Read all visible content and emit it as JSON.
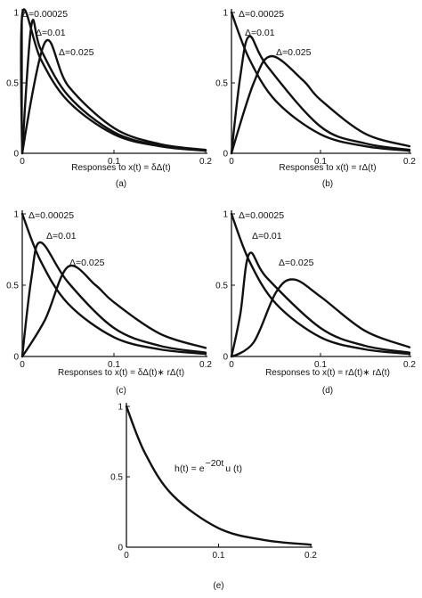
{
  "chart_data": [
    {
      "type": "line",
      "panel_label": "(a)",
      "xlabel": "Responses to x(t) = δΔ(t)",
      "x_ticks": [
        "0",
        "0.1",
        "0.2"
      ],
      "y_ticks": [
        "0",
        "0.5",
        "1"
      ],
      "xlim": [
        0,
        0.2
      ],
      "ylim": [
        0,
        1
      ],
      "series": [
        {
          "name": "Δ=0.00025",
          "x": [
            0,
            0.00025,
            0.02,
            0.05,
            0.1,
            0.15,
            0.2
          ],
          "y": [
            0,
            1.0,
            0.67,
            0.37,
            0.135,
            0.05,
            0.018
          ]
        },
        {
          "name": "Δ=0.01",
          "x": [
            0,
            0.01,
            0.02,
            0.05,
            0.1,
            0.15,
            0.2
          ],
          "y": [
            0,
            0.91,
            0.74,
            0.41,
            0.15,
            0.055,
            0.02
          ]
        },
        {
          "name": "Δ=0.025",
          "x": [
            0,
            0.025,
            0.05,
            0.1,
            0.15,
            0.2
          ],
          "y": [
            0,
            0.79,
            0.48,
            0.18,
            0.065,
            0.024
          ]
        }
      ]
    },
    {
      "type": "line",
      "panel_label": "(b)",
      "xlabel": "Responses to x(t) = rΔ(t)",
      "x_ticks": [
        "0",
        "0.1",
        "0.2"
      ],
      "y_ticks": [
        "0",
        "0.5",
        "1"
      ],
      "xlim": [
        0,
        0.2
      ],
      "ylim": [
        0,
        1
      ],
      "series": [
        {
          "name": "Δ=0.00025",
          "x": [
            0,
            0.02,
            0.05,
            0.1,
            0.15,
            0.2
          ],
          "y": [
            1.0,
            0.67,
            0.37,
            0.135,
            0.05,
            0.018
          ]
        },
        {
          "name": "Δ=0.01",
          "x": [
            0,
            0.01,
            0.02,
            0.04,
            0.1,
            0.15,
            0.2
          ],
          "y": [
            0,
            0.55,
            0.83,
            0.62,
            0.19,
            0.07,
            0.025
          ]
        },
        {
          "name": "Δ=0.025",
          "x": [
            0,
            0.025,
            0.045,
            0.08,
            0.1,
            0.15,
            0.2
          ],
          "y": [
            0,
            0.5,
            0.69,
            0.52,
            0.38,
            0.14,
            0.05
          ]
        }
      ]
    },
    {
      "type": "line",
      "panel_label": "(c)",
      "xlabel": "Responses to x(t) = δΔ(t)∗ rΔ(t)",
      "x_ticks": [
        "0",
        "0.1",
        "0.2"
      ],
      "y_ticks": [
        "0",
        "0.5",
        "1"
      ],
      "xlim": [
        0,
        0.2
      ],
      "ylim": [
        0,
        1
      ],
      "series": [
        {
          "name": "Δ=0.00025",
          "x": [
            0,
            0.02,
            0.05,
            0.1,
            0.15,
            0.2
          ],
          "y": [
            1.0,
            0.67,
            0.37,
            0.135,
            0.05,
            0.018
          ]
        },
        {
          "name": "Δ=0.01",
          "x": [
            0,
            0.01,
            0.02,
            0.05,
            0.1,
            0.15,
            0.2
          ],
          "y": [
            0,
            0.55,
            0.8,
            0.52,
            0.2,
            0.075,
            0.027
          ]
        },
        {
          "name": "Δ=0.025",
          "x": [
            0,
            0.025,
            0.05,
            0.08,
            0.1,
            0.15,
            0.2
          ],
          "y": [
            0,
            0.26,
            0.63,
            0.5,
            0.38,
            0.16,
            0.06
          ]
        }
      ]
    },
    {
      "type": "line",
      "panel_label": "(d)",
      "xlabel": "Responses to x(t) = rΔ(t)∗ rΔ(t)",
      "x_ticks": [
        "0",
        "0.1",
        "0.2"
      ],
      "y_ticks": [
        "0",
        "0.5",
        "1"
      ],
      "xlim": [
        0,
        0.2
      ],
      "ylim": [
        0,
        1
      ],
      "series": [
        {
          "name": "Δ=0.00025",
          "x": [
            0,
            0.02,
            0.05,
            0.1,
            0.15,
            0.2
          ],
          "y": [
            1.0,
            0.67,
            0.37,
            0.135,
            0.05,
            0.018
          ]
        },
        {
          "name": "Δ=0.01",
          "x": [
            0,
            0.01,
            0.02,
            0.04,
            0.1,
            0.15,
            0.2
          ],
          "y": [
            0,
            0.3,
            0.72,
            0.55,
            0.2,
            0.075,
            0.027
          ]
        },
        {
          "name": "Δ=0.025",
          "x": [
            0,
            0.025,
            0.05,
            0.07,
            0.1,
            0.15,
            0.2
          ],
          "y": [
            0,
            0.1,
            0.45,
            0.54,
            0.42,
            0.18,
            0.065
          ]
        }
      ]
    },
    {
      "type": "line",
      "panel_label": "(e)",
      "xlabel": "",
      "annotation": {
        "base": "h(t) = e",
        "exponent": "−20t",
        "tail": "u (t)"
      },
      "x_ticks": [
        "0",
        "0.1",
        "0.2"
      ],
      "y_ticks": [
        "0",
        "0.5",
        "1"
      ],
      "xlim": [
        0,
        0.2
      ],
      "ylim": [
        0,
        1
      ],
      "series": [
        {
          "x": [
            0,
            0.02,
            0.05,
            0.1,
            0.15,
            0.2
          ],
          "y": [
            1.0,
            0.67,
            0.37,
            0.135,
            0.05,
            0.018
          ]
        }
      ]
    }
  ]
}
